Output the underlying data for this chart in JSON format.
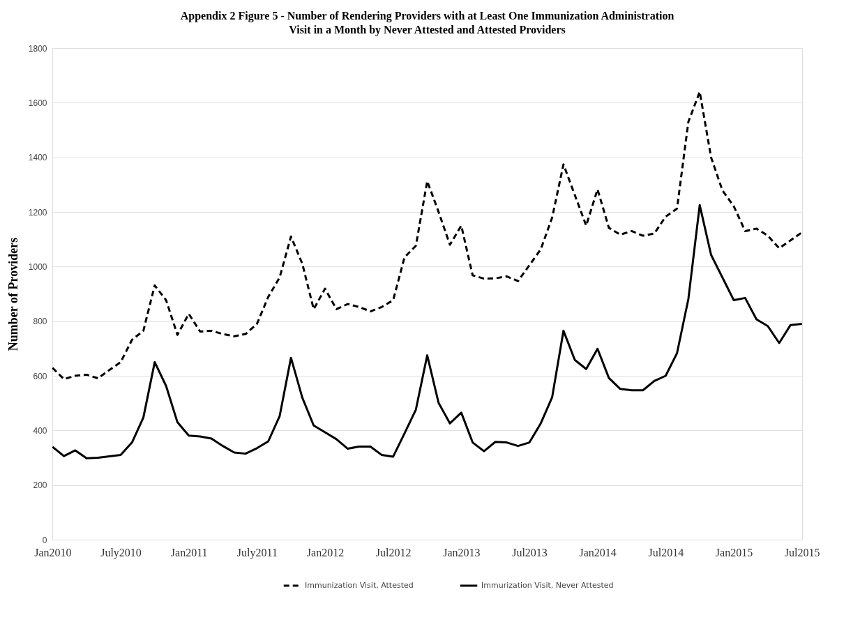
{
  "chart_data": {
    "type": "line",
    "title": "Appendix 2 Figure 5 - Number of Rendering Providers with at Least One Immunization Administration\nVisit in a Month by Never Attested and Attested Providers",
    "ylabel": "Number of Providers",
    "categories": [
      "Jan2010",
      null,
      null,
      null,
      null,
      null,
      "July2010",
      null,
      null,
      null,
      null,
      null,
      "Jan2011",
      null,
      null,
      null,
      null,
      null,
      "July2011",
      null,
      null,
      null,
      null,
      null,
      "Jan2012",
      null,
      null,
      null,
      null,
      null,
      "Jul2012",
      null,
      null,
      null,
      null,
      null,
      "Jan2013",
      null,
      null,
      null,
      null,
      null,
      "Jul2013",
      null,
      null,
      null,
      null,
      null,
      "Jan2014",
      null,
      null,
      null,
      null,
      null,
      "Jul2014",
      null,
      null,
      null,
      null,
      null,
      "Jan2015",
      null,
      null,
      null,
      null,
      null,
      "Jul2015"
    ],
    "series": [
      {
        "name": "Immunization Visit, Attested",
        "color": "#000000",
        "line_style": "dashed",
        "values": [
          629,
          588,
          600,
          604,
          591,
          621,
          650,
          732,
          765,
          931,
          877,
          750,
          827,
          762,
          765,
          753,
          745,
          753,
          790,
          889,
          960,
          1110,
          1010,
          844,
          919,
          844,
          863,
          852,
          836,
          852,
          877,
          1034,
          1076,
          1313,
          1200,
          1080,
          1150,
          968,
          956,
          957,
          964,
          947,
          1005,
          1063,
          1179,
          1374,
          1262,
          1150,
          1283,
          1142,
          1117,
          1130,
          1113,
          1121,
          1183,
          1212,
          1530,
          1640,
          1400,
          1279,
          1221,
          1130,
          1139,
          1113,
          1067,
          1096,
          1125
        ]
      },
      {
        "name": "Immurization Visit, Never Attested",
        "color": "#000000",
        "line_style": "solid",
        "values": [
          340,
          306,
          327,
          298,
          300,
          305,
          310,
          356,
          447,
          650,
          563,
          430,
          381,
          378,
          370,
          343,
          319,
          315,
          335,
          360,
          452,
          666,
          520,
          418,
          393,
          368,
          333,
          341,
          341,
          310,
          304,
          389,
          476,
          675,
          501,
          426,
          465,
          356,
          324,
          358,
          356,
          343,
          356,
          426,
          521,
          765,
          658,
          625,
          699,
          592,
          552,
          547,
          547,
          581,
          600,
          683,
          881,
          1225,
          1043,
          960,
          877,
          885,
          807,
          782,
          720,
          786,
          790
        ]
      }
    ],
    "ylim": [
      0,
      1800
    ],
    "yticks": [
      0,
      200,
      400,
      600,
      800,
      1000,
      1200,
      1400,
      1600,
      1800
    ],
    "grid": "y",
    "legend": "bottom",
    "marker": "none"
  }
}
